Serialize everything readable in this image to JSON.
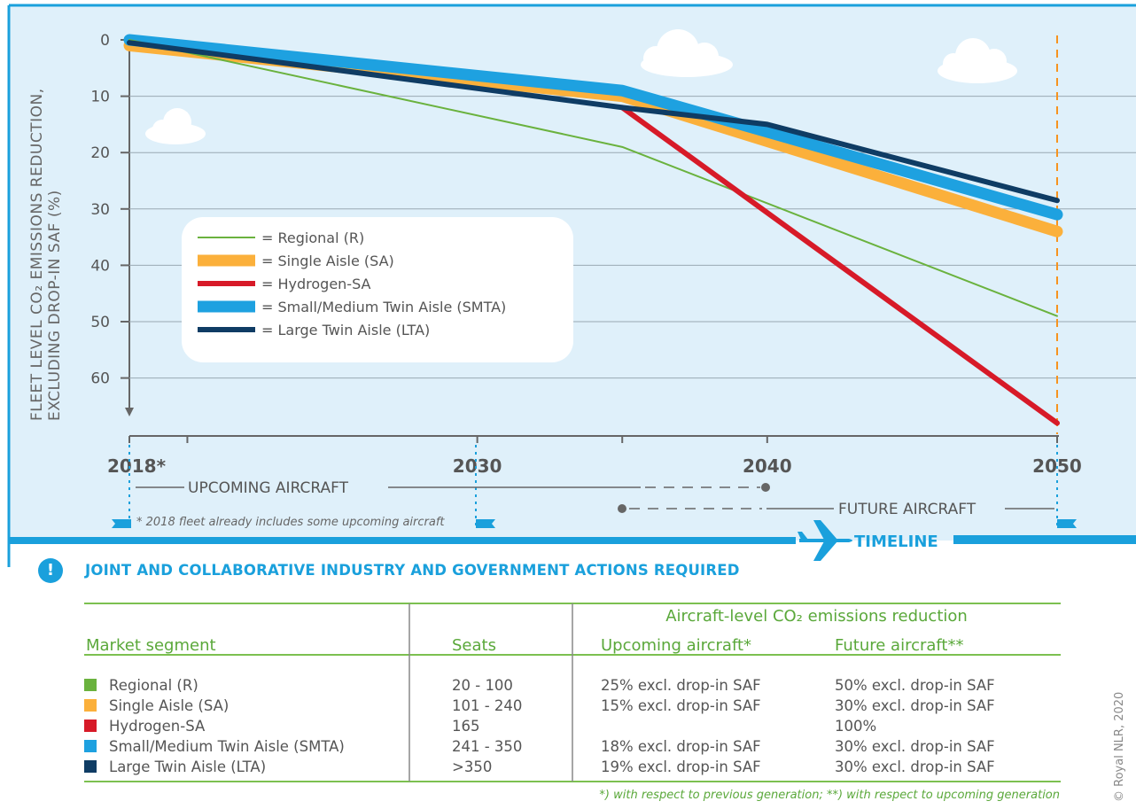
{
  "chart_data": {
    "type": "line",
    "ylabel_line1": "FLEET LEVEL CO₂ EMISSIONS REDUCTION,",
    "ylabel_line2": "EXCLUDING DROP-IN SAF (%)",
    "y_inverted": true,
    "ylim": [
      0,
      65
    ],
    "yticks": [
      "0",
      "10",
      "20",
      "30",
      "40",
      "50",
      "60"
    ],
    "xlim": [
      2018,
      2050
    ],
    "xticks": [
      "2018*",
      "2030",
      "2040",
      "2050"
    ],
    "grid": true,
    "legend_position": "center-left",
    "series": [
      {
        "name": "= Regional (R)",
        "color": "#6ab23e",
        "weight": "thin",
        "points": [
          [
            2018,
            0
          ],
          [
            2035,
            19
          ],
          [
            2050,
            49
          ]
        ]
      },
      {
        "name": "= Single Aisle (SA)",
        "color": "#fbb03b",
        "weight": "thick",
        "points": [
          [
            2018,
            1
          ],
          [
            2035,
            10
          ],
          [
            2050,
            34
          ]
        ]
      },
      {
        "name": "= Hydrogen-SA",
        "color": "#d71a28",
        "weight": "medium",
        "points": [
          [
            2035,
            12
          ],
          [
            2050,
            68
          ]
        ]
      },
      {
        "name": "= Small/Medium Twin Aisle (SMTA)",
        "color": "#1ea1e0",
        "weight": "thick",
        "points": [
          [
            2018,
            0
          ],
          [
            2035,
            9
          ],
          [
            2050,
            31
          ]
        ]
      },
      {
        "name": "= Large Twin Aisle (LTA)",
        "color": "#0f3c64",
        "weight": "medium",
        "points": [
          [
            2018,
            0.5
          ],
          [
            2035,
            12
          ],
          [
            2040,
            15
          ],
          [
            2050,
            28.5
          ]
        ]
      }
    ]
  },
  "timeline": {
    "upcoming_label": "UPCOMING AIRCRAFT",
    "future_label": "FUTURE AIRCRAFT",
    "note": "* 2018 fleet already includes some upcoming aircraft",
    "timeline_label": "TIMELINE"
  },
  "actions": {
    "alert_icon": "!",
    "title": "JOINT AND COLLABORATIVE INDUSTRY AND GOVERNMENT ACTIONS REQUIRED"
  },
  "table": {
    "group_header": "Aircraft-level CO₂ emissions reduction",
    "headers": [
      "Market segment",
      "Seats",
      "Upcoming aircraft*",
      "Future aircraft**"
    ],
    "rows": [
      {
        "color": "#6ab23e",
        "segment": "Regional (R)",
        "seats": "20 - 100",
        "upcoming": "25%  excl. drop-in SAF",
        "future": "50%  excl. drop-in SAF"
      },
      {
        "color": "#fbb03b",
        "segment": "Single Aisle (SA)",
        "seats": "101 - 240",
        "upcoming": "15%  excl. drop-in SAF",
        "future": "30%  excl. drop-in SAF"
      },
      {
        "color": "#d71a28",
        "segment": "Hydrogen-SA",
        "seats": "165",
        "upcoming": "",
        "future": "100%"
      },
      {
        "color": "#1ea1e0",
        "segment": "Small/Medium Twin Aisle (SMTA)",
        "seats": "241 - 350",
        "upcoming": "18%  excl. drop-in SAF",
        "future": "30%  excl. drop-in SAF"
      },
      {
        "color": "#0f3c64",
        "segment": "Large Twin Aisle (LTA)",
        "seats": ">350",
        "upcoming": "19%  excl. drop-in SAF",
        "future": "30%  excl. drop-in SAF"
      }
    ],
    "footnote": "*) with respect to previous generation; **) with respect to upcoming generation"
  },
  "copyright": "© Royal NLR, 2020"
}
